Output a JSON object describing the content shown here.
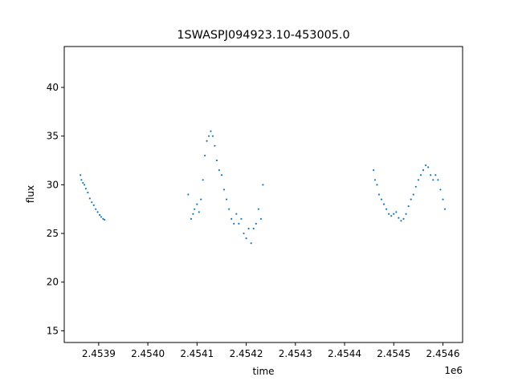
{
  "chart_data": {
    "type": "scatter",
    "title": "1SWASPJ094923.10-453005.0",
    "xlabel": "time",
    "ylabel": "flux",
    "x_offset_label": "1e6",
    "xlim": [
      2453830,
      2454640
    ],
    "ylim": [
      13.8,
      44.2
    ],
    "x_ticks": [
      2453900,
      2454000,
      2454100,
      2454200,
      2454300,
      2454400,
      2454500,
      2454600
    ],
    "x_tick_labels": [
      "2.4539",
      "2.4540",
      "2.4541",
      "2.4542",
      "2.4543",
      "2.4544",
      "2.4545",
      "2.4546"
    ],
    "y_ticks": [
      15,
      20,
      25,
      30,
      35,
      40
    ],
    "y_tick_labels": [
      "15",
      "20",
      "25",
      "30",
      "35",
      "40"
    ],
    "grid": false,
    "legend": "none",
    "series": [
      {
        "color": "#1f77b4",
        "x": [
          2453863,
          2453865,
          2453868,
          2453871,
          2453874,
          2453878,
          2453882,
          2453886,
          2453890,
          2453894,
          2453898,
          2453902,
          2453905,
          2453909,
          2453912,
          2454082,
          2454088,
          2454092,
          2454095,
          2454100,
          2454104,
          2454108,
          2454112,
          2454116,
          2454120,
          2454124,
          2454128,
          2454132,
          2454136,
          2454140,
          2454145,
          2454150,
          2454155,
          2454160,
          2454165,
          2454170,
          2454175,
          2454180,
          2454185,
          2454190,
          2454195,
          2454200,
          2454205,
          2454210,
          2454215,
          2454220,
          2454225,
          2454230,
          2454234,
          2454459,
          2454462,
          2454466,
          2454470,
          2454475,
          2454480,
          2454485,
          2454490,
          2454495,
          2454500,
          2454505,
          2454510,
          2454515,
          2454520,
          2454525,
          2454530,
          2454535,
          2454540,
          2454545,
          2454550,
          2454555,
          2454560,
          2454565,
          2454570,
          2454575,
          2454580,
          2454585,
          2454590,
          2454595,
          2454600,
          2454604
        ],
        "y": [
          31.0,
          30.5,
          30.2,
          30.0,
          29.6,
          29.2,
          28.6,
          28.2,
          27.9,
          27.5,
          27.2,
          26.9,
          26.7,
          26.5,
          26.4,
          29.0,
          26.5,
          27.0,
          27.5,
          28.0,
          27.2,
          28.5,
          30.5,
          33.0,
          34.5,
          35.0,
          35.5,
          35.0,
          34.0,
          32.5,
          31.5,
          31.0,
          29.5,
          28.5,
          27.5,
          26.5,
          26.0,
          27.0,
          26.0,
          26.5,
          25.0,
          24.5,
          25.5,
          24.0,
          25.5,
          26.0,
          27.5,
          26.5,
          30.0,
          31.5,
          30.5,
          30.0,
          29.0,
          28.5,
          28.0,
          27.5,
          27.0,
          26.8,
          27.0,
          27.2,
          26.6,
          26.3,
          26.5,
          27.0,
          27.8,
          28.5,
          29.0,
          29.8,
          30.5,
          31.0,
          31.5,
          32.0,
          31.8,
          31.0,
          30.5,
          31.0,
          30.5,
          29.5,
          28.5,
          27.5
        ]
      }
    ]
  }
}
